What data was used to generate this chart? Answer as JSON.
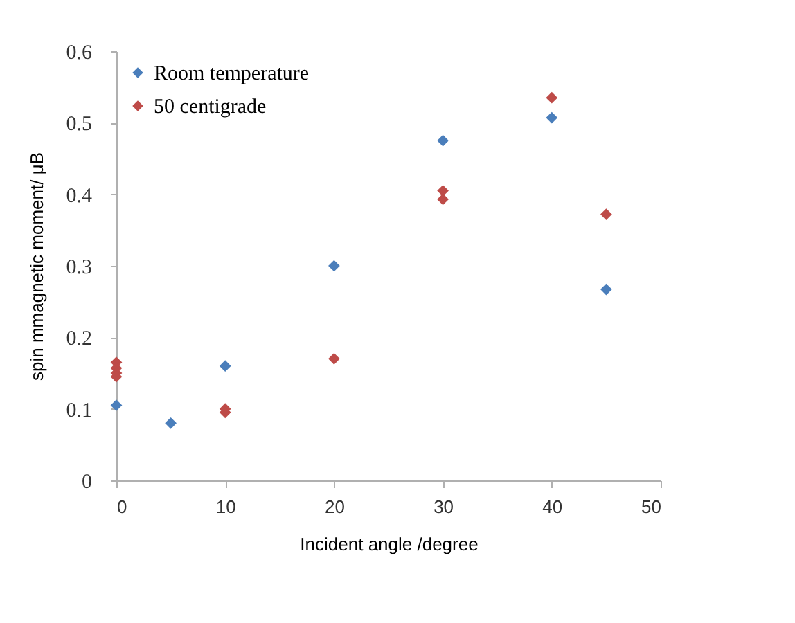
{
  "chart_data": {
    "type": "scatter",
    "xlabel": "Incident angle /degree",
    "ylabel": "spin mmagnetic moment/ μB",
    "xlim": [
      0,
      50
    ],
    "xticks": [
      0,
      10,
      20,
      30,
      40,
      50
    ],
    "ylim": [
      0,
      0.6
    ],
    "yticks": [
      0,
      0.1,
      0.2,
      0.3,
      0.4,
      0.5,
      0.6
    ],
    "grid": false,
    "legend": "top left",
    "marker": "diamond",
    "series": [
      {
        "name": "Room temperature",
        "color": "#4a7ebb",
        "x": [
          0,
          5,
          10,
          20,
          30,
          40,
          45
        ],
        "values": [
          0.105,
          0.08,
          0.16,
          0.3,
          0.475,
          0.507,
          0.267
        ]
      },
      {
        "name": "50 centigrade",
        "color": "#be4b48",
        "x": [
          0,
          0,
          0,
          0,
          10,
          10,
          20,
          30,
          30,
          40,
          45
        ],
        "values": [
          0.165,
          0.157,
          0.15,
          0.145,
          0.1,
          0.095,
          0.17,
          0.405,
          0.393,
          0.535,
          0.372
        ]
      }
    ]
  }
}
